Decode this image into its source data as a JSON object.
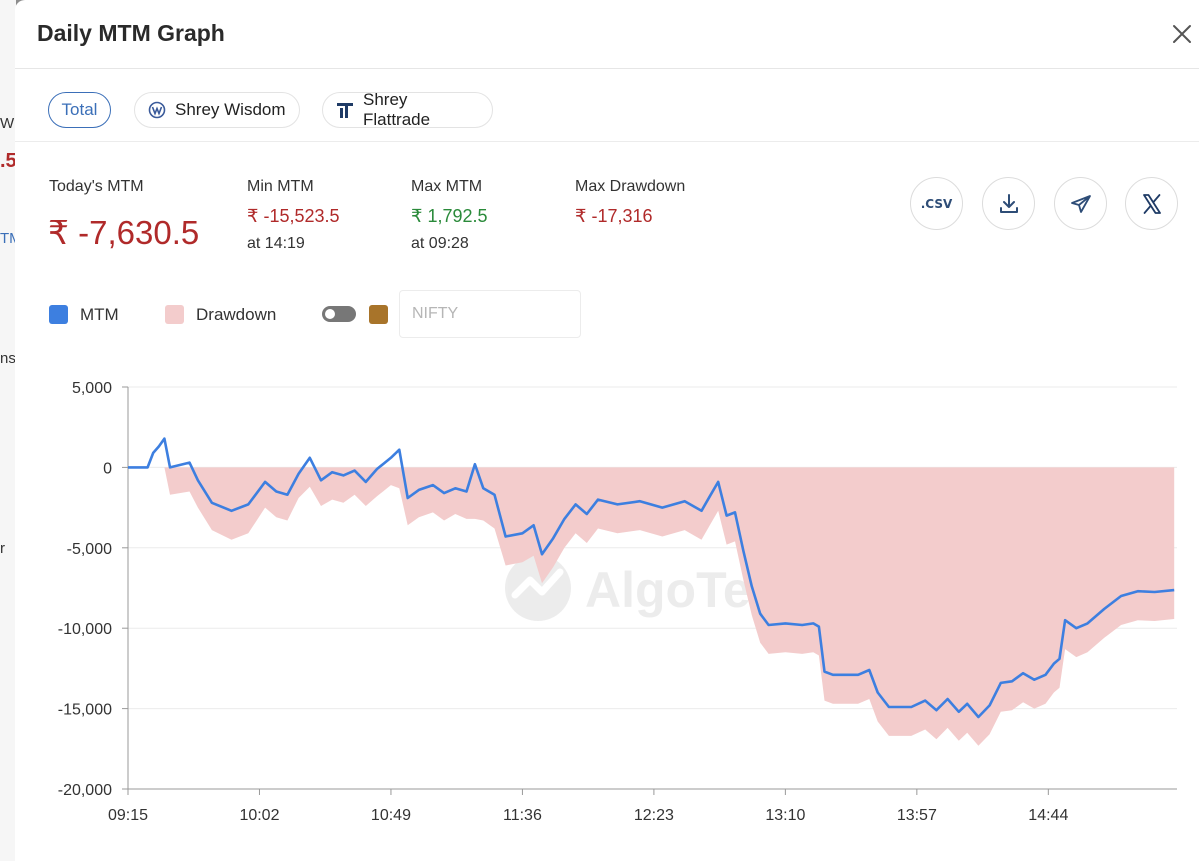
{
  "background_fragments": [
    "Wis",
    ".5",
    "TM",
    "ns",
    "r"
  ],
  "header": {
    "title": "Daily MTM Graph"
  },
  "tabs": [
    {
      "label": "Total",
      "active": true
    },
    {
      "label": "Shrey Wisdom",
      "active": false,
      "icon": "wisdom-logo-icon"
    },
    {
      "label": "Shrey Flattrade",
      "active": false,
      "icon": "flattrade-logo-icon"
    }
  ],
  "stats": {
    "today_label": "Today's MTM",
    "today_value": "₹ -7,630.5",
    "min_label": "Min MTM",
    "min_value": "₹ -15,523.5",
    "min_time": "at 14:19",
    "max_label": "Max MTM",
    "max_value": "₹ 1,792.5",
    "max_time": "at 09:28",
    "drawdown_label": "Max Drawdown",
    "drawdown_value": "₹ -17,316"
  },
  "actions": {
    "csv_label": ".CSV"
  },
  "legend": {
    "mtm_label": "MTM",
    "drawdown_label": "Drawdown",
    "nifty_placeholder": "NIFTY"
  },
  "colors": {
    "mtm_line": "#3d7fe0",
    "drawdown_fill": "#f3cccc",
    "negative": "#b02a2a",
    "positive": "#2a8a3a",
    "nifty_swatch": "#a8742a",
    "active_tab": "#3b6fb8"
  },
  "watermark": "AlgoTest",
  "chart_data": {
    "type": "area",
    "x_ticks": [
      "09:15",
      "10:02",
      "10:49",
      "11:36",
      "12:23",
      "13:10",
      "13:57",
      "14:44"
    ],
    "y_ticks": [
      "5,000",
      "0",
      "-5,000",
      "-10,000",
      "-15,000",
      "-20,000"
    ],
    "ylim": [
      -20000,
      5000
    ],
    "x_range": [
      "09:15",
      "15:30"
    ],
    "grid": true,
    "legend_position": "top-left",
    "series": [
      {
        "name": "MTM",
        "type": "line",
        "points": [
          [
            "09:15",
            0
          ],
          [
            "09:22",
            0
          ],
          [
            "09:24",
            900
          ],
          [
            "09:26",
            1300
          ],
          [
            "09:28",
            1792.5
          ],
          [
            "09:30",
            0
          ],
          [
            "09:37",
            300
          ],
          [
            "09:40",
            -800
          ],
          [
            "09:45",
            -2200
          ],
          [
            "09:52",
            -2700
          ],
          [
            "09:58",
            -2300
          ],
          [
            "10:04",
            -900
          ],
          [
            "10:08",
            -1500
          ],
          [
            "10:12",
            -1700
          ],
          [
            "10:16",
            -400
          ],
          [
            "10:20",
            600
          ],
          [
            "10:24",
            -800
          ],
          [
            "10:28",
            -300
          ],
          [
            "10:32",
            -500
          ],
          [
            "10:36",
            -200
          ],
          [
            "10:40",
            -900
          ],
          [
            "10:44",
            -100
          ],
          [
            "10:49",
            600
          ],
          [
            "10:52",
            1100
          ],
          [
            "10:55",
            -1900
          ],
          [
            "10:59",
            -1400
          ],
          [
            "11:04",
            -1100
          ],
          [
            "11:08",
            -1600
          ],
          [
            "11:12",
            -1300
          ],
          [
            "11:16",
            -1500
          ],
          [
            "11:19",
            200
          ],
          [
            "11:22",
            -1300
          ],
          [
            "11:26",
            -1700
          ],
          [
            "11:30",
            -4300
          ],
          [
            "11:36",
            -4100
          ],
          [
            "11:40",
            -3600
          ],
          [
            "11:43",
            -5400
          ],
          [
            "11:47",
            -4400
          ],
          [
            "11:51",
            -3200
          ],
          [
            "11:55",
            -2300
          ],
          [
            "11:59",
            -2900
          ],
          [
            "12:03",
            -2000
          ],
          [
            "12:10",
            -2300
          ],
          [
            "12:18",
            -2100
          ],
          [
            "12:26",
            -2500
          ],
          [
            "12:34",
            -2100
          ],
          [
            "12:40",
            -2700
          ],
          [
            "12:43",
            -1800
          ],
          [
            "12:46",
            -900
          ],
          [
            "12:49",
            -3000
          ],
          [
            "12:52",
            -2800
          ],
          [
            "12:55",
            -5200
          ],
          [
            "12:58",
            -7400
          ],
          [
            "13:01",
            -9100
          ],
          [
            "13:04",
            -9800
          ],
          [
            "13:10",
            -9700
          ],
          [
            "13:16",
            -9800
          ],
          [
            "13:20",
            -9700
          ],
          [
            "13:22",
            -9900
          ],
          [
            "13:24",
            -12700
          ],
          [
            "13:27",
            -12900
          ],
          [
            "13:36",
            -12900
          ],
          [
            "13:40",
            -12600
          ],
          [
            "13:43",
            -14000
          ],
          [
            "13:47",
            -14900
          ],
          [
            "13:55",
            -14900
          ],
          [
            "14:00",
            -14500
          ],
          [
            "14:04",
            -15100
          ],
          [
            "14:08",
            -14400
          ],
          [
            "14:12",
            -15200
          ],
          [
            "14:15",
            -14700
          ],
          [
            "14:19",
            -15523.5
          ],
          [
            "14:23",
            -14800
          ],
          [
            "14:27",
            -13400
          ],
          [
            "14:31",
            -13300
          ],
          [
            "14:35",
            -12800
          ],
          [
            "14:39",
            -13200
          ],
          [
            "14:43",
            -12900
          ],
          [
            "14:46",
            -12200
          ],
          [
            "14:48",
            -11900
          ],
          [
            "14:50",
            -9500
          ],
          [
            "14:54",
            -10000
          ],
          [
            "14:58",
            -9700
          ],
          [
            "15:04",
            -8800
          ],
          [
            "15:10",
            -8000
          ],
          [
            "15:16",
            -7700
          ],
          [
            "15:22",
            -7750
          ],
          [
            "15:29",
            -7630.5
          ]
        ]
      },
      {
        "name": "Drawdown",
        "type": "area",
        "points": [
          [
            "09:15",
            0
          ],
          [
            "09:28",
            0
          ],
          [
            "09:30",
            -1700
          ],
          [
            "09:37",
            -1500
          ],
          [
            "09:40",
            -2500
          ],
          [
            "09:45",
            -3900
          ],
          [
            "09:52",
            -4500
          ],
          [
            "09:58",
            -4100
          ],
          [
            "10:04",
            -2500
          ],
          [
            "10:08",
            -3100
          ],
          [
            "10:12",
            -3300
          ],
          [
            "10:16",
            -1900
          ],
          [
            "10:20",
            -1200
          ],
          [
            "10:24",
            -2400
          ],
          [
            "10:28",
            -2000
          ],
          [
            "10:32",
            -2200
          ],
          [
            "10:36",
            -1700
          ],
          [
            "10:40",
            -2400
          ],
          [
            "10:44",
            -1800
          ],
          [
            "10:49",
            -1100
          ],
          [
            "10:52",
            -1300
          ],
          [
            "10:55",
            -3600
          ],
          [
            "10:59",
            -3100
          ],
          [
            "11:04",
            -2800
          ],
          [
            "11:08",
            -3300
          ],
          [
            "11:12",
            -2900
          ],
          [
            "11:16",
            -3200
          ],
          [
            "11:19",
            -3200
          ],
          [
            "11:22",
            -3300
          ],
          [
            "11:26",
            -3800
          ],
          [
            "11:30",
            -6100
          ],
          [
            "11:36",
            -5900
          ],
          [
            "11:40",
            -5500
          ],
          [
            "11:43",
            -7200
          ],
          [
            "11:47",
            -6200
          ],
          [
            "11:51",
            -5000
          ],
          [
            "11:55",
            -4100
          ],
          [
            "11:59",
            -4700
          ],
          [
            "12:03",
            -3800
          ],
          [
            "12:10",
            -4100
          ],
          [
            "12:18",
            -3900
          ],
          [
            "12:26",
            -4300
          ],
          [
            "12:34",
            -3900
          ],
          [
            "12:40",
            -4500
          ],
          [
            "12:43",
            -3600
          ],
          [
            "12:46",
            -2700
          ],
          [
            "12:49",
            -4800
          ],
          [
            "12:52",
            -4600
          ],
          [
            "12:55",
            -7000
          ],
          [
            "12:58",
            -9200
          ],
          [
            "13:01",
            -10900
          ],
          [
            "13:04",
            -11600
          ],
          [
            "13:10",
            -11500
          ],
          [
            "13:16",
            -11600
          ],
          [
            "13:20",
            -11500
          ],
          [
            "13:22",
            -11700
          ],
          [
            "13:24",
            -14500
          ],
          [
            "13:27",
            -14700
          ],
          [
            "13:36",
            -14700
          ],
          [
            "13:40",
            -14400
          ],
          [
            "13:43",
            -15800
          ],
          [
            "13:47",
            -16700
          ],
          [
            "13:55",
            -16700
          ],
          [
            "14:00",
            -16300
          ],
          [
            "14:04",
            -16900
          ],
          [
            "14:08",
            -16200
          ],
          [
            "14:12",
            -17000
          ],
          [
            "14:15",
            -16500
          ],
          [
            "14:19",
            -17316
          ],
          [
            "14:23",
            -16600
          ],
          [
            "14:27",
            -15200
          ],
          [
            "14:31",
            -15100
          ],
          [
            "14:35",
            -14600
          ],
          [
            "14:39",
            -15000
          ],
          [
            "14:43",
            -14700
          ],
          [
            "14:46",
            -14000
          ],
          [
            "14:48",
            -13700
          ],
          [
            "14:50",
            -11300
          ],
          [
            "14:54",
            -11800
          ],
          [
            "14:58",
            -11500
          ],
          [
            "15:04",
            -10600
          ],
          [
            "15:10",
            -9800
          ],
          [
            "15:16",
            -9500
          ],
          [
            "15:22",
            -9550
          ],
          [
            "15:29",
            -9430
          ]
        ]
      }
    ]
  }
}
